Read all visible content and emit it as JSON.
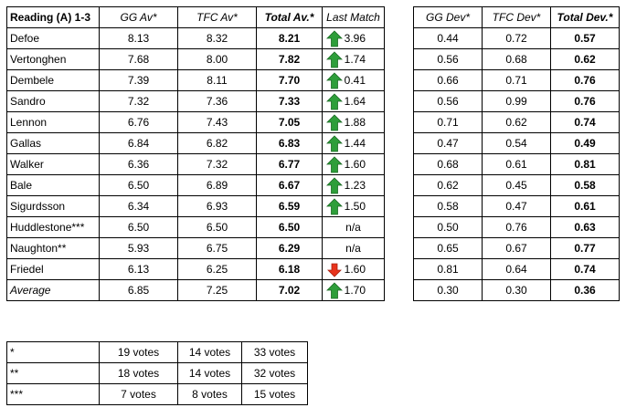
{
  "main_table": {
    "headers": [
      "Reading (A) 1-3",
      "GG Av*",
      "TFC Av*",
      "Total Av.*",
      "Last Match"
    ],
    "rows": [
      {
        "name": "Defoe",
        "gg": "8.13",
        "tfc": "8.32",
        "total": "8.21",
        "trend": "up",
        "last": "3.96"
      },
      {
        "name": "Vertonghen",
        "gg": "7.68",
        "tfc": "8.00",
        "total": "7.82",
        "trend": "up",
        "last": "1.74"
      },
      {
        "name": "Dembele",
        "gg": "7.39",
        "tfc": "8.11",
        "total": "7.70",
        "trend": "up",
        "last": "0.41"
      },
      {
        "name": "Sandro",
        "gg": "7.32",
        "tfc": "7.36",
        "total": "7.33",
        "trend": "up",
        "last": "1.64"
      },
      {
        "name": "Lennon",
        "gg": "6.76",
        "tfc": "7.43",
        "total": "7.05",
        "trend": "up",
        "last": "1.88"
      },
      {
        "name": "Gallas",
        "gg": "6.84",
        "tfc": "6.82",
        "total": "6.83",
        "trend": "up",
        "last": "1.44"
      },
      {
        "name": "Walker",
        "gg": "6.36",
        "tfc": "7.32",
        "total": "6.77",
        "trend": "up",
        "last": "1.60"
      },
      {
        "name": "Bale",
        "gg": "6.50",
        "tfc": "6.89",
        "total": "6.67",
        "trend": "up",
        "last": "1.23"
      },
      {
        "name": "Sigurdsson",
        "gg": "6.34",
        "tfc": "6.93",
        "total": "6.59",
        "trend": "up",
        "last": "1.50"
      },
      {
        "name": "Huddlestone***",
        "gg": "6.50",
        "tfc": "6.50",
        "total": "6.50",
        "trend": "none",
        "last": "n/a"
      },
      {
        "name": "Naughton**",
        "gg": "5.93",
        "tfc": "6.75",
        "total": "6.29",
        "trend": "none",
        "last": "n/a"
      },
      {
        "name": "Friedel",
        "gg": "6.13",
        "tfc": "6.25",
        "total": "6.18",
        "trend": "down",
        "last": "1.60"
      },
      {
        "name": "Average",
        "gg": "6.85",
        "tfc": "7.25",
        "total": "7.02",
        "trend": "up",
        "last": "1.70"
      }
    ]
  },
  "dev_table": {
    "headers": [
      "GG Dev*",
      "TFC Dev*",
      "Total Dev.*"
    ],
    "rows": [
      {
        "gg": "0.44",
        "tfc": "0.72",
        "total": "0.57"
      },
      {
        "gg": "0.56",
        "tfc": "0.68",
        "total": "0.62"
      },
      {
        "gg": "0.66",
        "tfc": "0.71",
        "total": "0.76"
      },
      {
        "gg": "0.56",
        "tfc": "0.99",
        "total": "0.76"
      },
      {
        "gg": "0.71",
        "tfc": "0.62",
        "total": "0.74"
      },
      {
        "gg": "0.47",
        "tfc": "0.54",
        "total": "0.49"
      },
      {
        "gg": "0.68",
        "tfc": "0.61",
        "total": "0.81"
      },
      {
        "gg": "0.62",
        "tfc": "0.45",
        "total": "0.58"
      },
      {
        "gg": "0.58",
        "tfc": "0.47",
        "total": "0.61"
      },
      {
        "gg": "0.50",
        "tfc": "0.76",
        "total": "0.63"
      },
      {
        "gg": "0.65",
        "tfc": "0.67",
        "total": "0.77"
      },
      {
        "gg": "0.81",
        "tfc": "0.64",
        "total": "0.74"
      },
      {
        "gg": "0.30",
        "tfc": "0.30",
        "total": "0.36"
      }
    ]
  },
  "votes_table": {
    "rows": [
      {
        "symbol": "*",
        "gg": "19 votes",
        "tfc": "14 votes",
        "total": "33 votes"
      },
      {
        "symbol": "**",
        "gg": "18 votes",
        "tfc": "14 votes",
        "total": "32 votes"
      },
      {
        "symbol": "***",
        "gg": "7 votes",
        "tfc": "8 votes",
        "total": "15 votes"
      }
    ]
  },
  "colors": {
    "arrow_up": "#2e9e3a",
    "arrow_down": "#e8331c"
  },
  "icons": {
    "up": "arrow-up-icon",
    "down": "arrow-down-icon"
  }
}
